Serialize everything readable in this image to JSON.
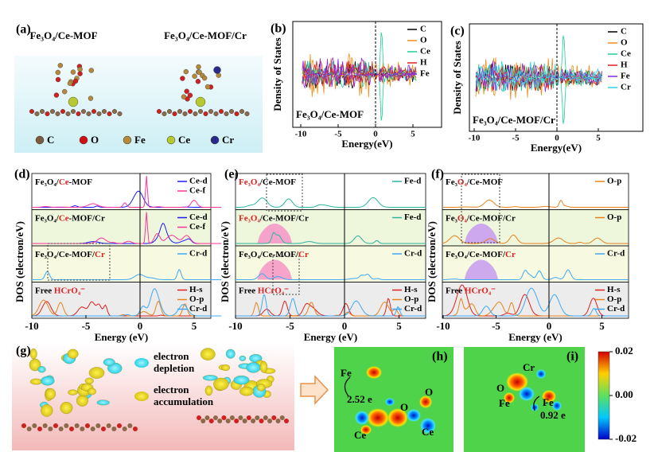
{
  "panel_a": {
    "label": "(a)",
    "titles": [
      "Fe₃O₄/Ce-MOF",
      "Fe₃O₄/Ce-MOF/Cr"
    ],
    "legend": [
      {
        "name": "C",
        "color": "#7a5a3a"
      },
      {
        "name": "O",
        "color": "#d01010"
      },
      {
        "name": "Fe",
        "color": "#b8883a"
      },
      {
        "name": "Ce",
        "color": "#b8c830"
      },
      {
        "name": "Cr",
        "color": "#2a2a8a"
      }
    ]
  },
  "panel_b": {
    "label": "(b)",
    "ylabel": "Density of States",
    "xlabel": "Energy(eV)",
    "xticks": [
      -10,
      -5,
      0,
      5
    ],
    "inset": "Fe₃O₄/Ce-MOF",
    "legend": [
      {
        "name": "C",
        "color": "#000000"
      },
      {
        "name": "O",
        "color": "#f28e1c"
      },
      {
        "name": "Ce",
        "color": "#1ecf8f"
      },
      {
        "name": "H",
        "color": "#e02020"
      },
      {
        "name": "Fe",
        "color": "#8a2be2"
      }
    ]
  },
  "panel_c": {
    "label": "(c)",
    "ylabel": "Density of States",
    "xlabel": "Energy(eV)",
    "xticks": [
      -10,
      -5,
      0,
      5
    ],
    "inset": "Fe₃O₄/Ce-MOF/Cr",
    "legend": [
      {
        "name": "C",
        "color": "#000000"
      },
      {
        "name": "O",
        "color": "#f28e1c"
      },
      {
        "name": "Ce",
        "color": "#1ecf8f"
      },
      {
        "name": "H",
        "color": "#e02020"
      },
      {
        "name": "Fe",
        "color": "#8a2be2"
      },
      {
        "name": "Cr",
        "color": "#2ad4e6"
      }
    ]
  },
  "panel_d": {
    "label": "(d)",
    "ylabel": "DOS (electron/eV)",
    "xlabel": "Energy (eV)",
    "xticks": [
      -10,
      -5,
      0,
      5
    ],
    "rows": [
      {
        "segments": [
          {
            "text": "Fe₃O₄/",
            "color": "#000"
          },
          {
            "text": "Ce",
            "color": "#e02020"
          },
          {
            "text": "-MOF",
            "color": "#000"
          }
        ],
        "legend": [
          {
            "name": "Ce-d",
            "color": "#1a1aff"
          },
          {
            "name": "Ce-f",
            "color": "#ff3399"
          }
        ]
      },
      {
        "segments": [
          {
            "text": "Fe₃O₄/",
            "color": "#000"
          },
          {
            "text": "Ce",
            "color": "#e02020"
          },
          {
            "text": "-MOF/Cr",
            "color": "#000"
          }
        ],
        "legend": [
          {
            "name": "Ce-d",
            "color": "#1a1aff"
          },
          {
            "name": "Ce-f",
            "color": "#ff3399"
          }
        ]
      },
      {
        "segments": [
          {
            "text": "Fe₃O₄/Ce-MOF/",
            "color": "#000"
          },
          {
            "text": "Cr",
            "color": "#e02020"
          }
        ],
        "legend": [
          {
            "name": "Cr-d",
            "color": "#3fa9f5"
          }
        ]
      },
      {
        "segments": [
          {
            "text": "Free ",
            "color": "#000"
          },
          {
            "text": "HCrO₄⁻",
            "color": "#e02020"
          }
        ],
        "legend": [
          {
            "name": "H-s",
            "color": "#e02020"
          },
          {
            "name": "O-p",
            "color": "#e8821e"
          },
          {
            "name": "Cr-d",
            "color": "#3fa9f5"
          }
        ]
      }
    ]
  },
  "panel_e": {
    "label": "(e)",
    "ylabel": "DOS (electron/eV)",
    "xlabel": "Energy (eV)",
    "xticks": [
      -10,
      -5,
      0,
      5
    ],
    "rows": [
      {
        "segments": [
          {
            "text": "Fe₃O₄",
            "color": "#e02020"
          },
          {
            "text": "/Ce-MOF",
            "color": "#000"
          }
        ],
        "legend": [
          {
            "name": "Fe-d",
            "color": "#2bb5a0"
          }
        ]
      },
      {
        "segments": [
          {
            "text": "Fe₃O₄",
            "color": "#e02020"
          },
          {
            "text": "/Ce-MOF/Cr",
            "color": "#000"
          }
        ],
        "legend": [
          {
            "name": "Fe-d",
            "color": "#2bb5a0"
          }
        ]
      },
      {
        "segments": [
          {
            "text": "Fe₃O₄/Ce-MOF/",
            "color": "#000"
          },
          {
            "text": "Cr",
            "color": "#e02020"
          }
        ],
        "legend": [
          {
            "name": "Cr-d",
            "color": "#3fa9f5"
          }
        ]
      },
      {
        "segments": [
          {
            "text": "Free ",
            "color": "#000"
          },
          {
            "text": "HCrO₄⁻",
            "color": "#e02020"
          }
        ],
        "legend": [
          {
            "name": "H-s",
            "color": "#e02020"
          },
          {
            "name": "O-p",
            "color": "#e8821e"
          },
          {
            "name": "Cr-d",
            "color": "#3fa9f5"
          }
        ]
      }
    ]
  },
  "panel_f": {
    "label": "(f)",
    "ylabel": "DOS (electron/eV)",
    "xlabel": "Energy (eV)",
    "xticks": [
      -10,
      -5,
      0,
      5
    ],
    "rows": [
      {
        "segments": [
          {
            "text": "Fe₃",
            "color": "#000"
          },
          {
            "text": "O₄",
            "color": "#e02020"
          },
          {
            "text": "/Ce-MOF",
            "color": "#000"
          }
        ],
        "legend": [
          {
            "name": "O-p",
            "color": "#e8821e"
          }
        ]
      },
      {
        "segments": [
          {
            "text": "Fe₃",
            "color": "#000"
          },
          {
            "text": "O₄",
            "color": "#e02020"
          },
          {
            "text": "/Ce-MOF/Cr",
            "color": "#000"
          }
        ],
        "legend": [
          {
            "name": "O-p",
            "color": "#e8821e"
          }
        ]
      },
      {
        "segments": [
          {
            "text": "Fe₃O₄/Ce-MOF/",
            "color": "#000"
          },
          {
            "text": "Cr",
            "color": "#e02020"
          }
        ],
        "legend": [
          {
            "name": "Cr-d",
            "color": "#3fa9f5"
          }
        ]
      },
      {
        "segments": [
          {
            "text": "Free ",
            "color": "#000"
          },
          {
            "text": "HCrO₄⁻",
            "color": "#e02020"
          }
        ],
        "legend": [
          {
            "name": "H-s",
            "color": "#e02020"
          },
          {
            "name": "O-p",
            "color": "#e8821e"
          },
          {
            "name": "Cr-d",
            "color": "#3fa9f5"
          }
        ]
      }
    ]
  },
  "panel_g": {
    "label": "(g)",
    "depletion": [
      "electron",
      "depletion"
    ],
    "accumulation": [
      "electron",
      "accumulation"
    ]
  },
  "panel_h": {
    "label": "(h)",
    "annotations": [
      "Fe",
      "2.52 e",
      "O",
      "O",
      "Ce",
      "Ce"
    ]
  },
  "panel_i": {
    "label": "(i)",
    "annotations": [
      "Cr",
      "O",
      "Fe",
      "Fe",
      "0.92 e"
    ],
    "colorbar_ticks": [
      0.02,
      {
        "value": 0,
        "label": "0.00"
      },
      -0.02
    ]
  }
}
